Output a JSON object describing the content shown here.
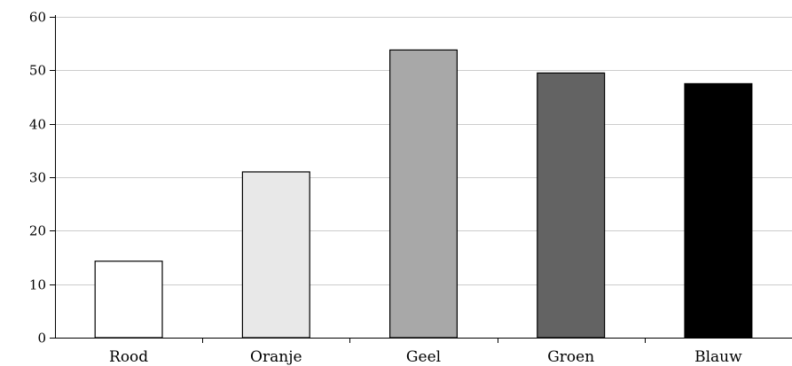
{
  "chart_data": {
    "type": "bar",
    "title": "",
    "xlabel": "",
    "ylabel": "",
    "categories": [
      "Rood",
      "Oranje",
      "Geel",
      "Groen",
      "Blauw"
    ],
    "values": [
      14.3,
      31.0,
      53.8,
      49.5,
      47.5
    ],
    "bar_colors": [
      "#ffffff",
      "#e8e8e8",
      "#a8a8a8",
      "#636363",
      "#000000"
    ],
    "bar_edge_color": "#000000",
    "gridline_color": "#cccccc",
    "ylim": [
      0,
      60
    ],
    "yticks": [
      0,
      10,
      20,
      30,
      40,
      50,
      60
    ],
    "ytick_labels": [
      "0",
      "10",
      "20",
      "30",
      "40",
      "50",
      "60"
    ],
    "grid": true,
    "legend": "none"
  }
}
